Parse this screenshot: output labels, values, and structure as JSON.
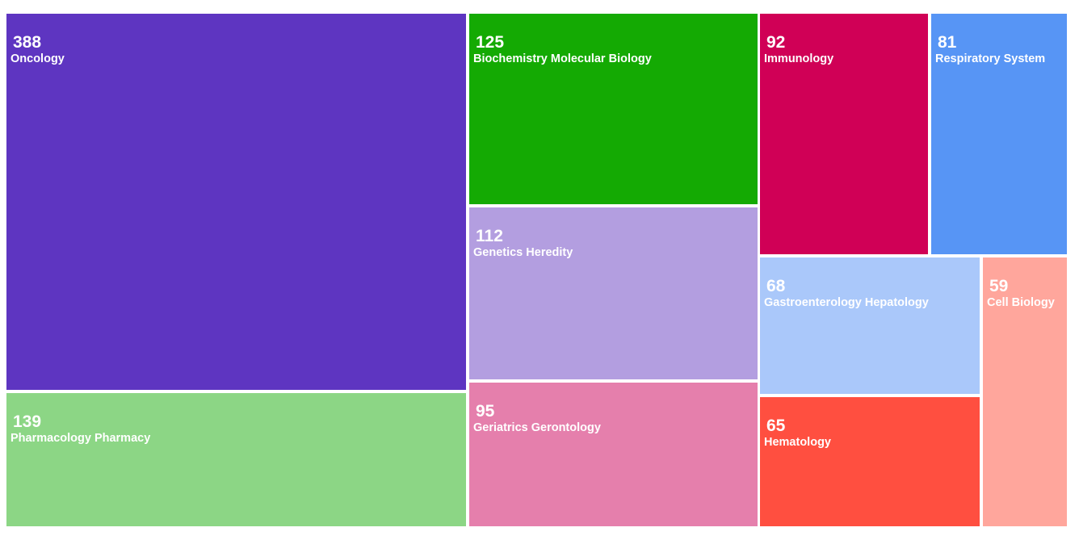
{
  "chart_data": {
    "type": "treemap",
    "title": "",
    "items": [
      {
        "label": "Oncology",
        "value": 388,
        "color": "#5e35c1"
      },
      {
        "label": "Pharmacology Pharmacy",
        "value": 139,
        "color": "#8cd685"
      },
      {
        "label": "Biochemistry Molecular Biology",
        "value": 125,
        "color": "#14aa03"
      },
      {
        "label": "Genetics Heredity",
        "value": 112,
        "color": "#b39ee0"
      },
      {
        "label": "Geriatrics Gerontology",
        "value": 95,
        "color": "#e57fac"
      },
      {
        "label": "Immunology",
        "value": 92,
        "color": "#d00056"
      },
      {
        "label": "Respiratory System",
        "value": 81,
        "color": "#5795f5"
      },
      {
        "label": "Gastroenterology Hepatology",
        "value": 68,
        "color": "#aac8fa"
      },
      {
        "label": "Hematology",
        "value": 65,
        "color": "#ff4f40"
      },
      {
        "label": "Cell Biology",
        "value": 59,
        "color": "#ffa69c"
      }
    ]
  }
}
